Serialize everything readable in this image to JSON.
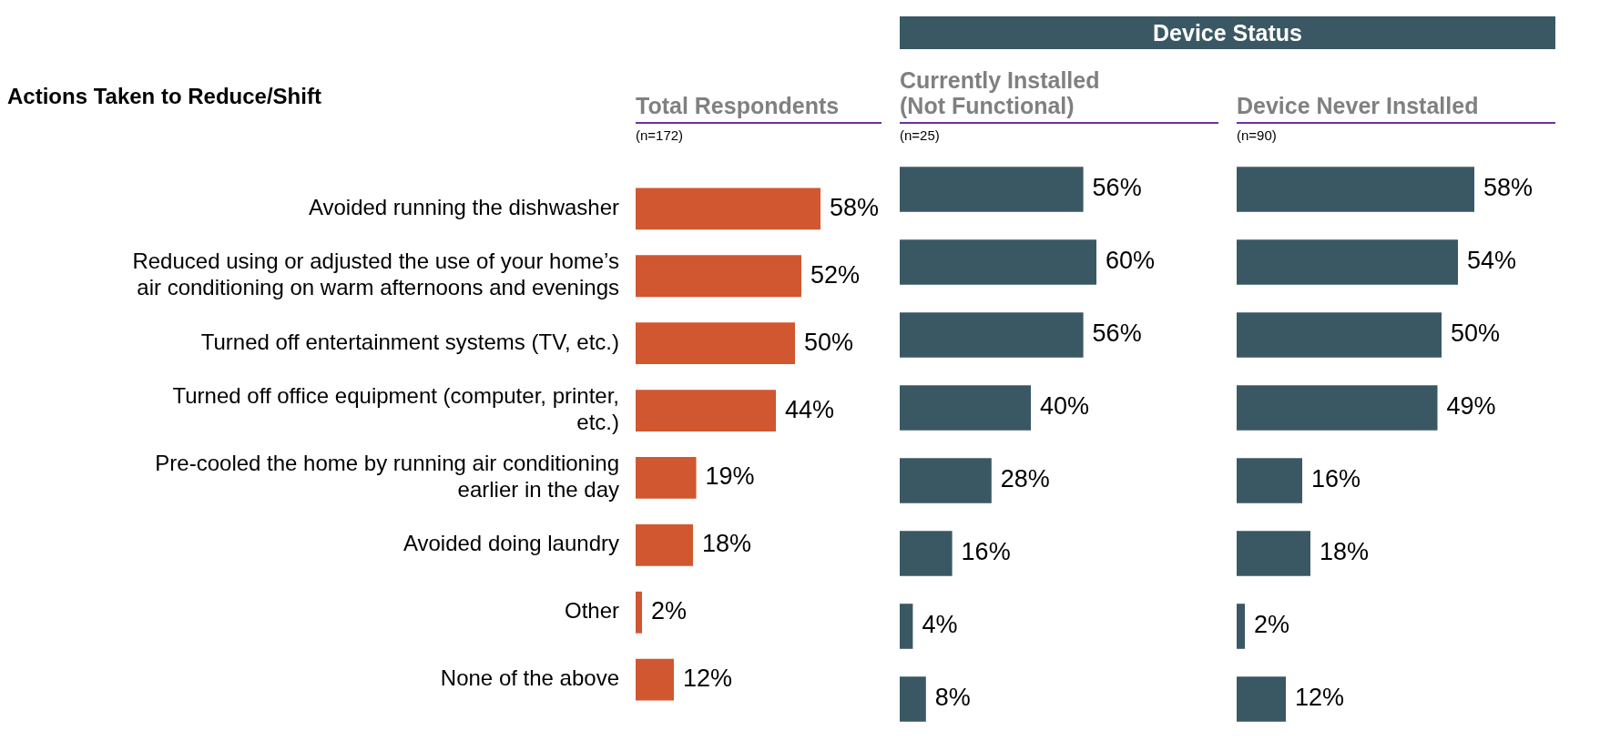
{
  "chart_data": [
    {
      "type": "bar",
      "orientation": "horizontal",
      "title": "Total Respondents",
      "subtitle": "(n=172)",
      "ylabel": "Actions Taken to Reduce/Shift",
      "categories": [
        "Avoided running the dishwasher",
        "Reduced using or adjusted the use of your home’s air conditioning on warm afternoons and evenings",
        "Turned off entertainment systems (TV, etc.)",
        "Turned off office equipment (computer, printer, etc.)",
        "Pre-cooled the home by running air conditioning earlier in the day",
        "Avoided doing laundry",
        "Other",
        "None of the above"
      ],
      "values": [
        58,
        52,
        50,
        44,
        19,
        18,
        2,
        12
      ],
      "value_labels": [
        "58%",
        "52%",
        "50%",
        "44%",
        "19%",
        "18%",
        "2%",
        "12%"
      ],
      "color": "#d0572f",
      "tick_labels": "y"
    },
    {
      "type": "bar",
      "orientation": "horizontal",
      "title": "Currently Installed (Not Functional)",
      "subtitle": "(n=25)",
      "annotations": [
        "Device Status"
      ],
      "categories": [
        null,
        null,
        null,
        null,
        null,
        null,
        null,
        null
      ],
      "values": [
        56,
        60,
        56,
        40,
        28,
        16,
        4,
        8
      ],
      "value_labels": [
        "56%",
        "60%",
        "56%",
        "40%",
        "28%",
        "16%",
        "4%",
        "8%"
      ],
      "color": "#3a5864",
      "tick_labels": false
    },
    {
      "type": "bar",
      "orientation": "horizontal",
      "title": "Device Never Installed",
      "subtitle": "(n=90)",
      "categories": [
        null,
        null,
        null,
        null,
        null,
        null,
        null,
        null
      ],
      "values": [
        58,
        54,
        50,
        49,
        16,
        18,
        2,
        12
      ],
      "value_labels": [
        "58%",
        "54%",
        "50%",
        "49%",
        "16%",
        "18%",
        "2%",
        "12%"
      ],
      "color": "#3a5864",
      "tick_labels": false
    }
  ]
}
